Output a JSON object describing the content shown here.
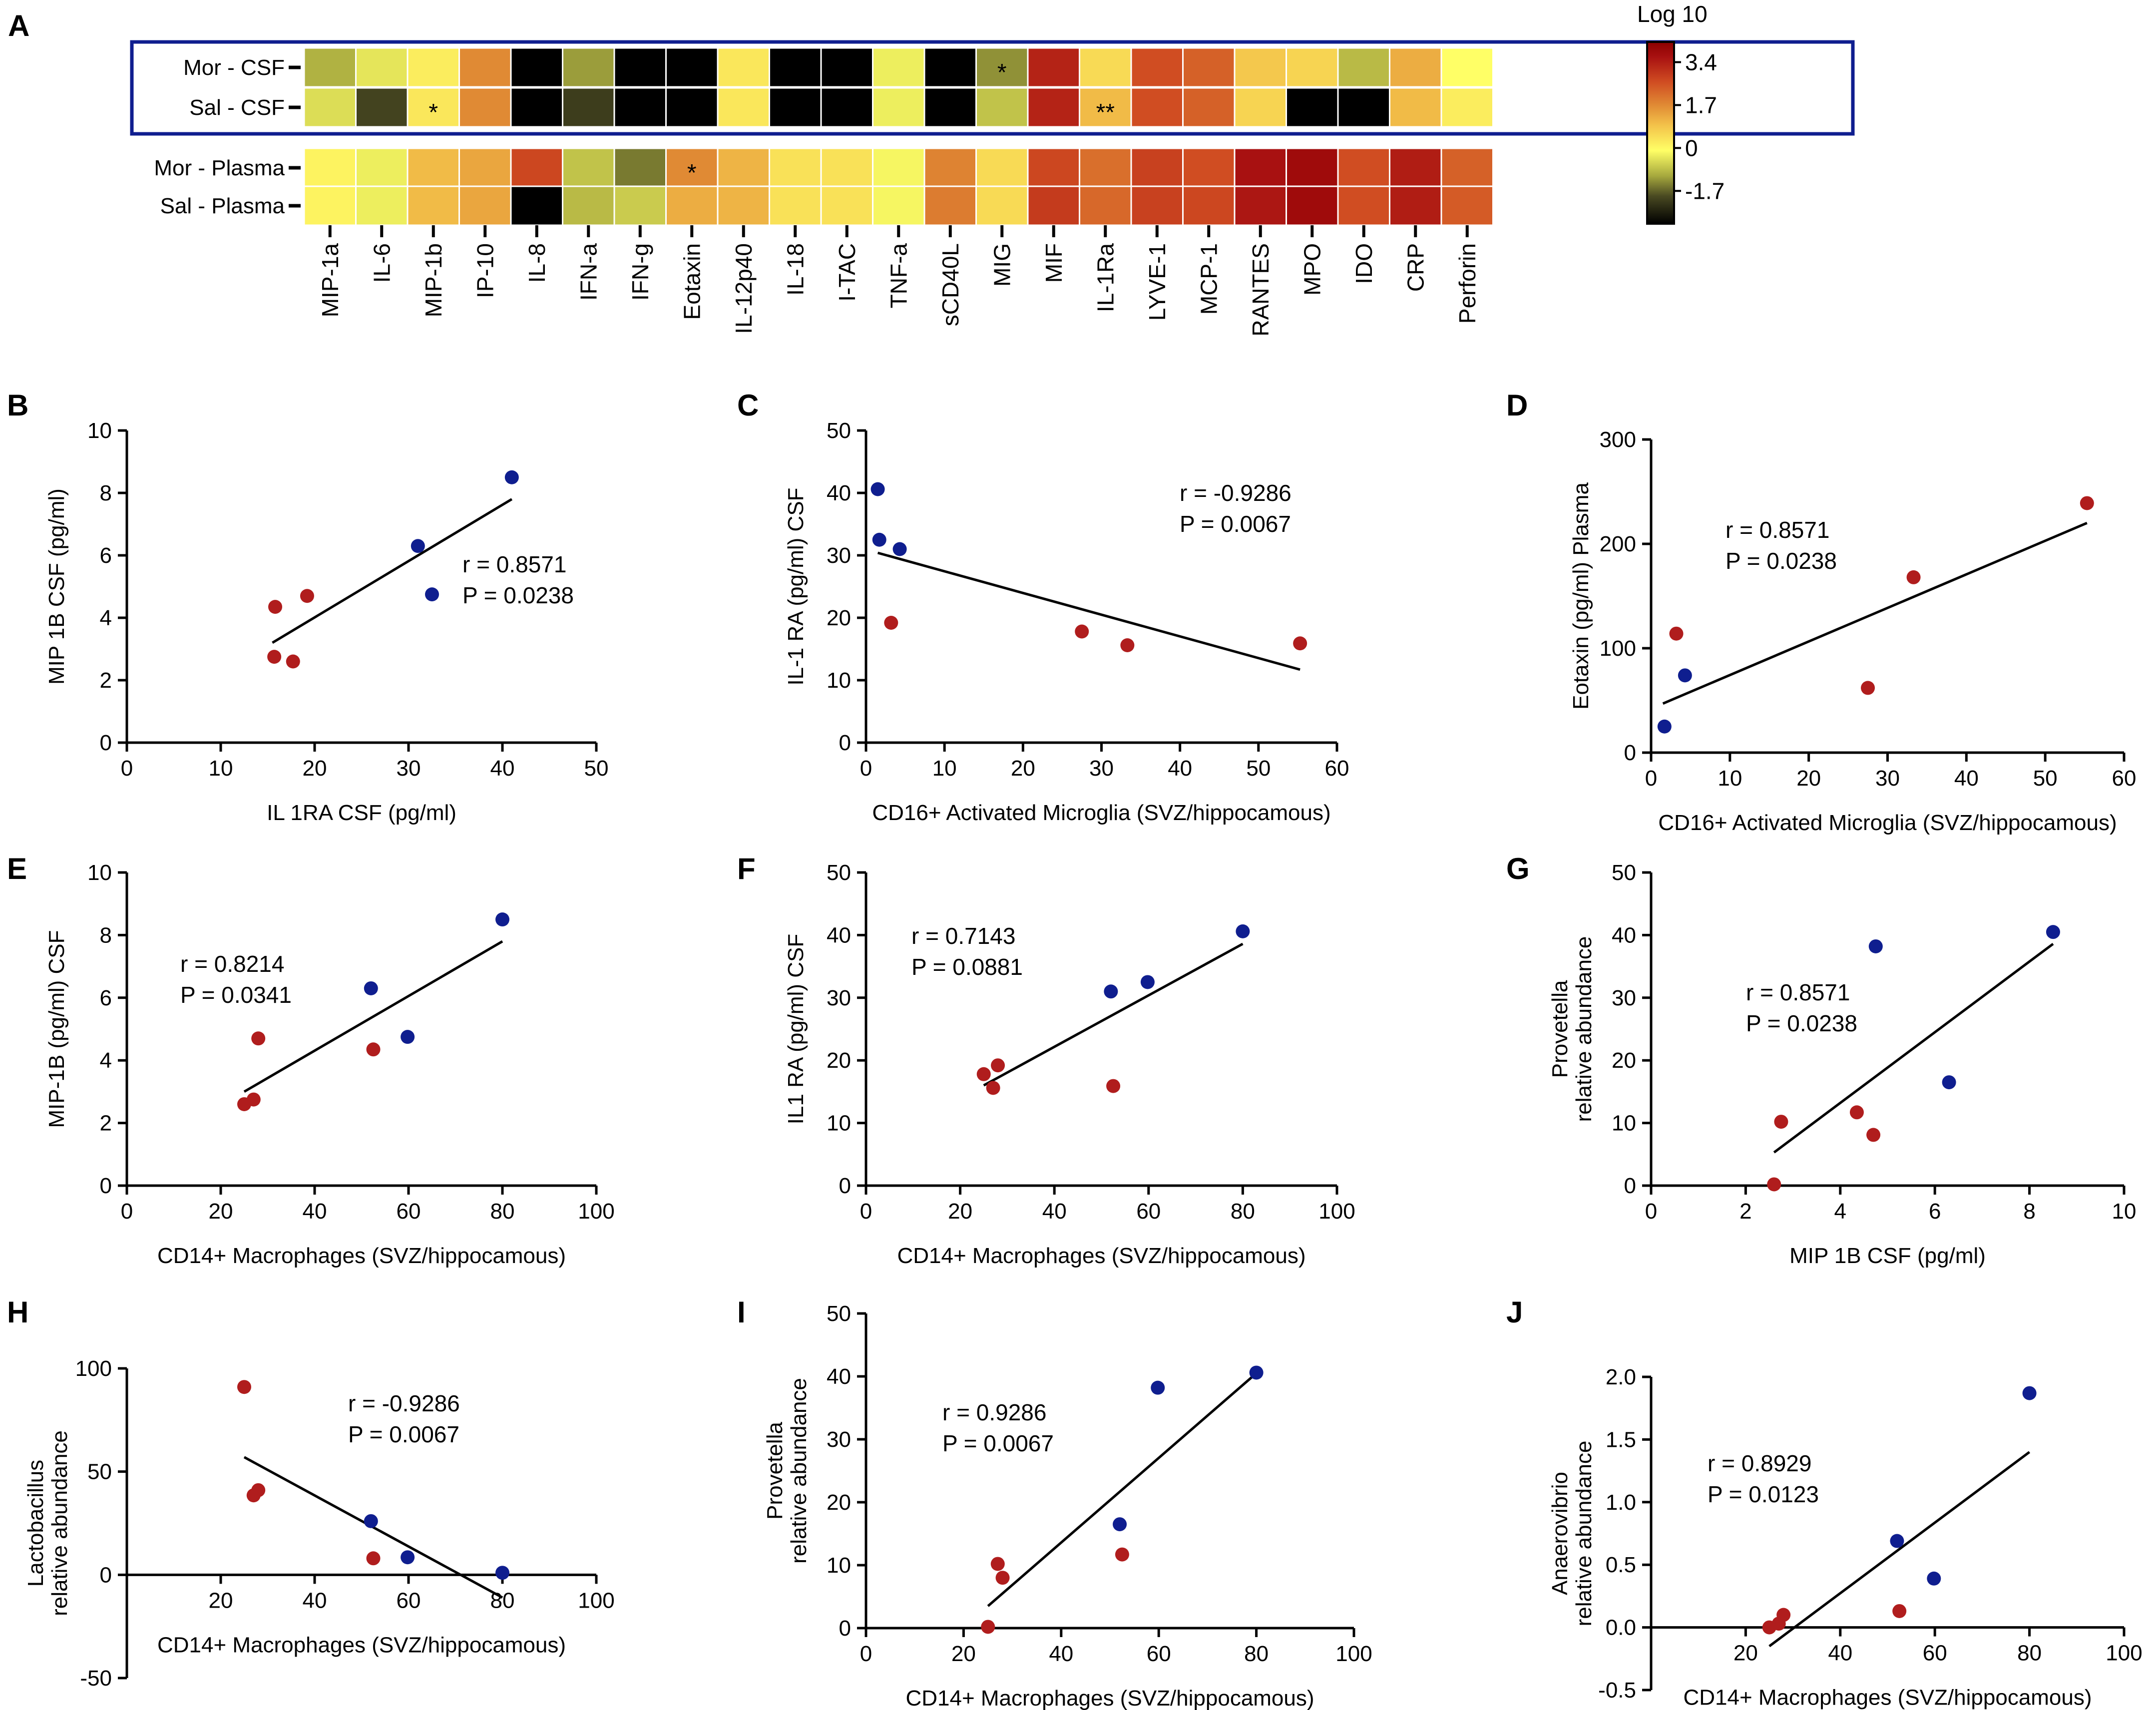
{
  "panel_letters": [
    "A",
    "B",
    "C",
    "D",
    "E",
    "F",
    "G",
    "H",
    "I",
    "J"
  ],
  "colors": {
    "morphine": "#b01d1d",
    "saline": "#0f1e8f",
    "box": "#0f1e8f",
    "scale": [
      "#000000",
      "#5a5a2a",
      "#c8c834",
      "#ffff66",
      "#f0a636",
      "#d05020",
      "#8c0000"
    ]
  },
  "chart_data": [
    {
      "id": "A",
      "type": "heatmap",
      "title": "",
      "columns": [
        "MIP-1a",
        "IL-6",
        "MIP-1b",
        "IP-10",
        "IL-8",
        "IFN-a",
        "IFN-g",
        "Eotaxin",
        "IL-12p40",
        "IL-18",
        "I-TAC",
        "TNF-a",
        "sCD40L",
        "MIG",
        "MIF",
        "IL-1Ra",
        "LYVE-1",
        "MCP-1",
        "RANTES",
        "MPO",
        "IDO",
        "CRP",
        "Perforin"
      ],
      "rows": [
        {
          "label": "Mor - CSF",
          "values": [
            -1.0,
            -0.4,
            0.2,
            1.7,
            -3.0,
            -1.2,
            -3.0,
            -3.0,
            0.3,
            -3.0,
            -3.0,
            -0.3,
            -3.0,
            -1.3,
            3.3,
            0.5,
            2.6,
            2.3,
            0.8,
            0.6,
            -0.9,
            1.2,
            -0.1
          ],
          "stars": [
            "",
            "",
            "",
            "",
            "",
            "",
            "",
            "",
            "",
            "",
            "",
            "",
            "",
            "*",
            "",
            "",
            "",
            "",
            "",
            "",
            "",
            "",
            ""
          ]
        },
        {
          "label": "Sal - CSF",
          "values": [
            -0.5,
            -2.0,
            0.3,
            1.7,
            -3.0,
            -2.1,
            -3.0,
            -3.0,
            0.3,
            -3.0,
            -3.0,
            -0.3,
            -3.0,
            -0.8,
            3.3,
            1.0,
            2.6,
            2.3,
            0.6,
            -3.0,
            -3.0,
            1.0,
            0.2
          ],
          "stars": [
            "",
            "",
            "*",
            "",
            "",
            "",
            "",
            "",
            "",
            "",
            "",
            "",
            "",
            "",
            "",
            "**",
            "",
            "",
            "",
            "",
            "",
            "",
            ""
          ]
        },
        {
          "label": "Mor - Plasma",
          "values": [
            0.1,
            -0.3,
            1.0,
            1.3,
            2.7,
            -0.8,
            -1.5,
            1.7,
            1.1,
            0.4,
            0.4,
            -0.2,
            1.8,
            0.5,
            2.7,
            2.1,
            2.8,
            2.6,
            3.6,
            3.8,
            2.6,
            3.4,
            2.3
          ],
          "stars": [
            "",
            "",
            "",
            "",
            "",
            "",
            "",
            "*",
            "",
            "",
            "",
            "",
            "",
            "",
            "",
            "",
            "",
            "",
            "",
            "",
            "",
            "",
            ""
          ]
        },
        {
          "label": "Sal - Plasma",
          "values": [
            0.1,
            -0.3,
            1.0,
            1.3,
            -3.0,
            -0.9,
            -0.7,
            1.2,
            1.1,
            0.4,
            0.4,
            -0.2,
            1.9,
            0.5,
            2.9,
            2.2,
            2.8,
            2.7,
            3.5,
            3.8,
            2.6,
            3.4,
            2.4
          ],
          "stars": [
            "",
            "",
            "",
            "",
            "",
            "",
            "",
            "",
            "",
            "",
            "",
            "",
            "",
            "",
            "",
            "",
            "",
            "",
            "",
            "",
            "",
            "",
            ""
          ]
        }
      ],
      "colorbar": {
        "title": "Log 10",
        "ticks": [
          "3.4",
          "1.7",
          "0",
          "-1.7"
        ],
        "tick_values": [
          3.4,
          1.7,
          0,
          -1.7
        ],
        "range": [
          -3.0,
          4.2
        ]
      }
    },
    {
      "id": "B",
      "type": "scatter",
      "xlabel": "IL 1RA CSF (pg/ml)",
      "ylabel": "MIP 1B CSF (pg/ml)",
      "ylabel2": "",
      "xlim": [
        0,
        50
      ],
      "ylim": [
        0,
        10
      ],
      "xticks": [
        0,
        10,
        20,
        30,
        40,
        50
      ],
      "yticks": [
        0,
        2,
        4,
        6,
        8,
        10
      ],
      "stats": {
        "r": "r = 0.8571",
        "p": "P = 0.0238"
      },
      "points": [
        {
          "x": 41.0,
          "y": 8.5,
          "group": "saline"
        },
        {
          "x": 31.0,
          "y": 6.3,
          "group": "saline"
        },
        {
          "x": 32.5,
          "y": 4.75,
          "group": "saline"
        },
        {
          "x": 19.2,
          "y": 4.7,
          "group": "morphine"
        },
        {
          "x": 15.8,
          "y": 4.35,
          "group": "morphine"
        },
        {
          "x": 15.7,
          "y": 2.75,
          "group": "morphine"
        },
        {
          "x": 17.7,
          "y": 2.6,
          "group": "morphine"
        }
      ],
      "fit": [
        [
          15.5,
          3.2
        ],
        [
          41.0,
          7.8
        ]
      ]
    },
    {
      "id": "C",
      "type": "scatter",
      "xlabel": "CD16+ Activated Microglia (SVZ/hippocamous)",
      "ylabel": "IL-1 RA (pg/ml) CSF",
      "ylabel2": "",
      "xlim": [
        0,
        60
      ],
      "ylim": [
        0,
        50
      ],
      "xticks": [
        0,
        10,
        20,
        30,
        40,
        50,
        60
      ],
      "yticks": [
        0,
        10,
        20,
        30,
        40,
        50
      ],
      "stats": {
        "r": "r = -0.9286",
        "p": "P = 0.0067"
      },
      "points": [
        {
          "x": 1.5,
          "y": 40.6,
          "group": "saline"
        },
        {
          "x": 1.7,
          "y": 32.5,
          "group": "saline"
        },
        {
          "x": 4.3,
          "y": 31.0,
          "group": "saline"
        },
        {
          "x": 3.2,
          "y": 19.2,
          "group": "morphine"
        },
        {
          "x": 27.5,
          "y": 17.8,
          "group": "morphine"
        },
        {
          "x": 33.3,
          "y": 15.6,
          "group": "morphine"
        },
        {
          "x": 55.3,
          "y": 15.9,
          "group": "morphine"
        }
      ],
      "fit": [
        [
          1.5,
          30.4
        ],
        [
          55.3,
          11.7
        ]
      ]
    },
    {
      "id": "D",
      "type": "scatter",
      "xlabel": "CD16+ Activated Microglia (SVZ/hippocamous)",
      "ylabel": "Eotaxin (pg/ml) Plasma",
      "ylabel2": "",
      "xlim": [
        0,
        60
      ],
      "ylim": [
        0,
        300
      ],
      "xticks": [
        0,
        10,
        20,
        30,
        40,
        50,
        60
      ],
      "yticks": [
        0,
        100,
        200,
        300
      ],
      "stats": {
        "r": "r = 0.8571",
        "p": "P = 0.0238"
      },
      "points": [
        {
          "x": 1.7,
          "y": 25,
          "group": "saline"
        },
        {
          "x": 4.3,
          "y": 74,
          "group": "saline"
        },
        {
          "x": 3.2,
          "y": 114,
          "group": "morphine"
        },
        {
          "x": 27.5,
          "y": 62,
          "group": "morphine"
        },
        {
          "x": 33.3,
          "y": 168,
          "group": "morphine"
        },
        {
          "x": 55.3,
          "y": 239,
          "group": "morphine"
        }
      ],
      "fit": [
        [
          1.5,
          47
        ],
        [
          55.3,
          220
        ]
      ]
    },
    {
      "id": "E",
      "type": "scatter",
      "xlabel": "CD14+ Macrophages (SVZ/hippocamous)",
      "ylabel": "MIP-1B (pg/ml) CSF",
      "ylabel2": "",
      "xlim": [
        0,
        100
      ],
      "ylim": [
        0,
        10
      ],
      "xticks": [
        0,
        20,
        40,
        60,
        80,
        100
      ],
      "yticks": [
        0,
        2,
        4,
        6,
        8,
        10
      ],
      "stats": {
        "r": "r = 0.8214",
        "p": "P = 0.0341"
      },
      "points": [
        {
          "x": 80.0,
          "y": 8.5,
          "group": "saline"
        },
        {
          "x": 52.0,
          "y": 6.3,
          "group": "saline"
        },
        {
          "x": 59.8,
          "y": 4.75,
          "group": "saline"
        },
        {
          "x": 28.0,
          "y": 4.7,
          "group": "morphine"
        },
        {
          "x": 52.5,
          "y": 4.35,
          "group": "morphine"
        },
        {
          "x": 27.0,
          "y": 2.75,
          "group": "morphine"
        },
        {
          "x": 25.0,
          "y": 2.6,
          "group": "morphine"
        }
      ],
      "fit": [
        [
          25.0,
          3.0
        ],
        [
          80.0,
          7.8
        ]
      ]
    },
    {
      "id": "F",
      "type": "scatter",
      "xlabel": "CD14+ Macrophages (SVZ/hippocamous)",
      "ylabel": "IL1 RA (pg/ml) CSF",
      "ylabel2": "",
      "xlim": [
        0,
        100
      ],
      "ylim": [
        0,
        50
      ],
      "xticks": [
        0,
        20,
        40,
        60,
        80,
        100
      ],
      "yticks": [
        0,
        10,
        20,
        30,
        40,
        50
      ],
      "stats": {
        "r": "r = 0.7143",
        "p": "P = 0.0881"
      },
      "points": [
        {
          "x": 80.0,
          "y": 40.6,
          "group": "saline"
        },
        {
          "x": 59.8,
          "y": 32.5,
          "group": "saline"
        },
        {
          "x": 52.0,
          "y": 31.0,
          "group": "saline"
        },
        {
          "x": 28.0,
          "y": 19.2,
          "group": "morphine"
        },
        {
          "x": 25.0,
          "y": 17.8,
          "group": "morphine"
        },
        {
          "x": 27.0,
          "y": 15.6,
          "group": "morphine"
        },
        {
          "x": 52.5,
          "y": 15.9,
          "group": "morphine"
        }
      ],
      "fit": [
        [
          25.0,
          16.0
        ],
        [
          80.0,
          38.6
        ]
      ]
    },
    {
      "id": "G",
      "type": "scatter",
      "xlabel": "MIP 1B CSF (pg/ml)",
      "ylabel": "Provetella",
      "ylabel2": "relative abundance",
      "xlim": [
        0,
        10
      ],
      "ylim": [
        0,
        50
      ],
      "xticks": [
        0,
        2,
        4,
        6,
        8,
        10
      ],
      "yticks": [
        0,
        10,
        20,
        30,
        40,
        50
      ],
      "stats": {
        "r": "r = 0.8571",
        "p": "P = 0.0238"
      },
      "points": [
        {
          "x": 8.5,
          "y": 40.5,
          "group": "saline"
        },
        {
          "x": 4.75,
          "y": 38.2,
          "group": "saline"
        },
        {
          "x": 6.3,
          "y": 16.5,
          "group": "saline"
        },
        {
          "x": 2.75,
          "y": 10.2,
          "group": "morphine"
        },
        {
          "x": 4.35,
          "y": 11.7,
          "group": "morphine"
        },
        {
          "x": 4.7,
          "y": 8.1,
          "group": "morphine"
        },
        {
          "x": 2.6,
          "y": 0.2,
          "group": "morphine"
        }
      ],
      "fit": [
        [
          2.6,
          5.3
        ],
        [
          8.5,
          38.6
        ]
      ]
    },
    {
      "id": "H",
      "type": "scatter",
      "xlabel": "CD14+ Macrophages (SVZ/hippocamous)",
      "ylabel": "Lactobacillus",
      "ylabel2": "relative abundance",
      "xlim": [
        0,
        100
      ],
      "ylim": [
        -50,
        100
      ],
      "xticks": [
        20,
        40,
        60,
        80,
        100
      ],
      "yticks": [
        -50,
        0,
        50,
        100
      ],
      "stats": {
        "r": "r = -0.9286",
        "p": "P = 0.0067"
      },
      "points": [
        {
          "x": 52.0,
          "y": 26,
          "group": "saline"
        },
        {
          "x": 59.8,
          "y": 8.5,
          "group": "saline"
        },
        {
          "x": 80.0,
          "y": 1,
          "group": "saline"
        },
        {
          "x": 25.0,
          "y": 91,
          "group": "morphine"
        },
        {
          "x": 28.0,
          "y": 41,
          "group": "morphine"
        },
        {
          "x": 27.0,
          "y": 38.5,
          "group": "morphine"
        },
        {
          "x": 52.5,
          "y": 8,
          "group": "morphine"
        }
      ],
      "fit": [
        [
          25.0,
          57
        ],
        [
          80.0,
          -11
        ]
      ]
    },
    {
      "id": "I",
      "type": "scatter",
      "xlabel": "CD14+ Macrophages (SVZ/hippocamous)",
      "ylabel": "Provetella",
      "ylabel2": "relative abundance",
      "xlim": [
        0,
        100
      ],
      "ylim": [
        0,
        50
      ],
      "xticks": [
        0,
        20,
        40,
        60,
        80,
        100
      ],
      "yticks": [
        0,
        10,
        20,
        30,
        40,
        50
      ],
      "stats": {
        "r": "r = 0.9286",
        "p": "P = 0.0067"
      },
      "points": [
        {
          "x": 80.0,
          "y": 40.6,
          "group": "saline"
        },
        {
          "x": 59.8,
          "y": 38.2,
          "group": "saline"
        },
        {
          "x": 52.0,
          "y": 16.5,
          "group": "saline"
        },
        {
          "x": 27.0,
          "y": 10.2,
          "group": "morphine"
        },
        {
          "x": 28.0,
          "y": 8.0,
          "group": "morphine"
        },
        {
          "x": 52.5,
          "y": 11.7,
          "group": "morphine"
        },
        {
          "x": 25.0,
          "y": 0.2,
          "group": "morphine"
        }
      ],
      "fit": [
        [
          25.0,
          3.5
        ],
        [
          80.0,
          40.5
        ]
      ]
    },
    {
      "id": "J",
      "type": "scatter",
      "xlabel": "CD14+ Macrophages (SVZ/hippocamous)",
      "ylabel": "Anaerovibrio",
      "ylabel2": "relative abundance",
      "xlim": [
        0,
        100
      ],
      "ylim": [
        -0.5,
        2.0
      ],
      "xticks": [
        20,
        40,
        60,
        80,
        100
      ],
      "yticks": [
        -0.5,
        0.0,
        0.5,
        1.0,
        1.5,
        2.0
      ],
      "ytick_labels": [
        "-0.5",
        "0.0",
        "0.5",
        "1.0",
        "1.5",
        "2.0"
      ],
      "stats": {
        "r": "r = 0.8929",
        "p": "P = 0.0123"
      },
      "points": [
        {
          "x": 80.0,
          "y": 1.87,
          "group": "saline"
        },
        {
          "x": 52.0,
          "y": 0.69,
          "group": "saline"
        },
        {
          "x": 59.8,
          "y": 0.39,
          "group": "saline"
        },
        {
          "x": 25.0,
          "y": 0.0,
          "group": "morphine"
        },
        {
          "x": 27.0,
          "y": 0.03,
          "group": "morphine"
        },
        {
          "x": 28.0,
          "y": 0.1,
          "group": "morphine"
        },
        {
          "x": 52.5,
          "y": 0.13,
          "group": "morphine"
        }
      ],
      "fit": [
        [
          25.0,
          -0.15
        ],
        [
          80.0,
          1.4
        ]
      ]
    }
  ]
}
